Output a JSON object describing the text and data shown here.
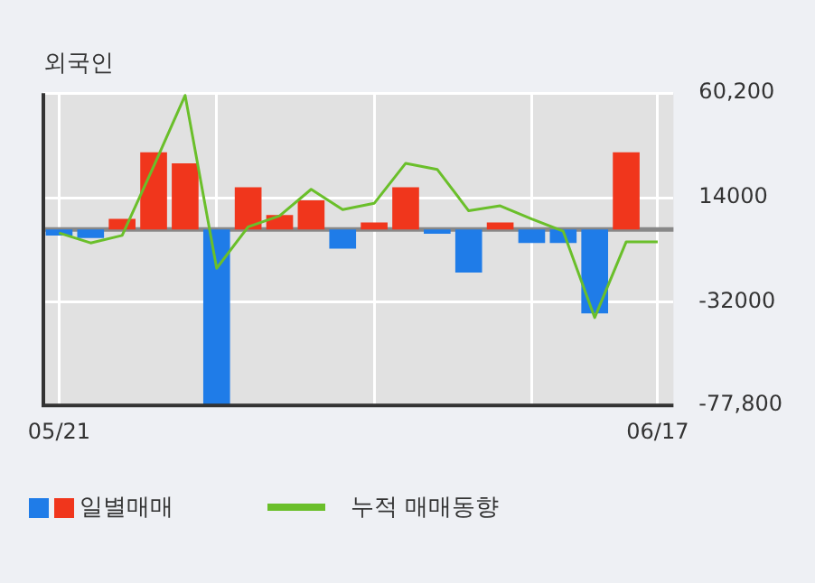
{
  "chart_data": {
    "type": "bar",
    "title": "외국인",
    "categories": [
      "05/21",
      null,
      null,
      null,
      null,
      null,
      null,
      null,
      null,
      null,
      null,
      null,
      null,
      null,
      null,
      null,
      null,
      null,
      null,
      "06/17"
    ],
    "series": [
      {
        "name": "일별매매",
        "colors": [
          "#1f7ce8",
          "#1f7ce8",
          "#f0361c",
          "#f0361c",
          "#f0361c",
          "#1f7ce8",
          "#f0361c",
          "#f0361c",
          "#f0361c",
          "#1f7ce8",
          "#f0361c",
          "#f0361c",
          "#1f7ce8",
          "#1f7ce8",
          "#f0361c",
          "#1f7ce8",
          "#1f7ce8",
          "#1f7ce8",
          "#f0361c",
          "#f0361c"
        ],
        "values": [
          -2700,
          -3800,
          4600,
          34100,
          29200,
          -77300,
          18600,
          6300,
          12800,
          -8500,
          3000,
          18600,
          -1900,
          -19100,
          3000,
          -6000,
          -6000,
          -37100,
          34100,
          null
        ]
      },
      {
        "name": "누적 매매동향",
        "type": "line",
        "color": "#6abf2a",
        "values": [
          -1600,
          -6000,
          -2700,
          27800,
          59200,
          -17200,
          1100,
          6000,
          17700,
          8700,
          11500,
          29200,
          26500,
          8200,
          10400,
          4600,
          -800,
          -39000,
          -5500,
          -5500
        ]
      }
    ],
    "ylim": [
      -77800,
      60200
    ],
    "yticks": [
      {
        "value": 60200,
        "label": "60,200"
      },
      14000,
      -32000,
      {
        "value": -77800,
        "label": "-77,800"
      }
    ],
    "grid": true,
    "legend": "bottom"
  }
}
